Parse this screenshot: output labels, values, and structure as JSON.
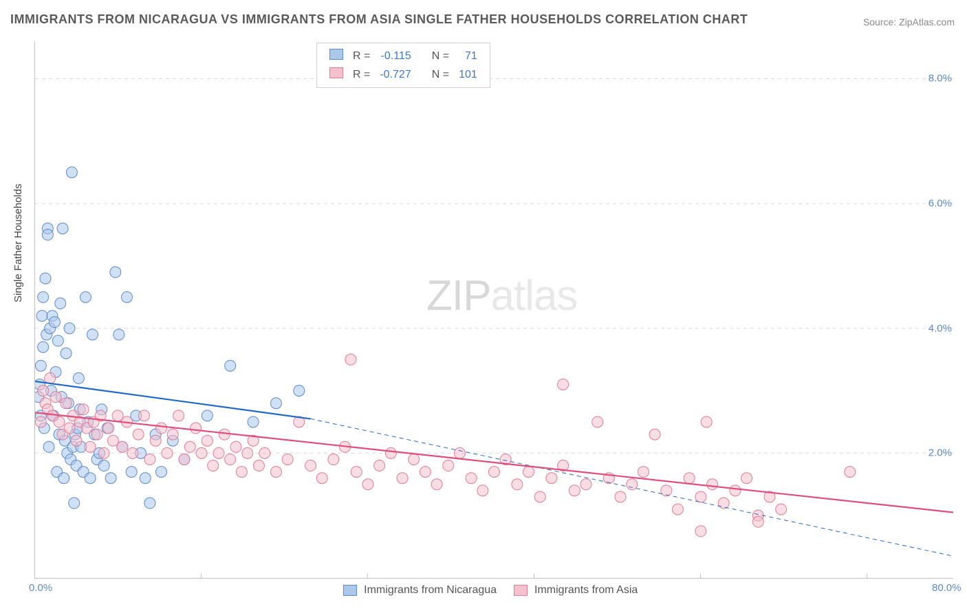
{
  "title": "IMMIGRANTS FROM NICARAGUA VS IMMIGRANTS FROM ASIA SINGLE FATHER HOUSEHOLDS CORRELATION CHART",
  "source": "Source: ZipAtlas.com",
  "watermark_a": "ZIP",
  "watermark_b": "atlas",
  "ylabel": "Single Father Households",
  "chart": {
    "type": "scatter",
    "x_min": 0.0,
    "x_max": 80.0,
    "y_min": 0.0,
    "y_max": 8.6,
    "x_ticks": [
      0.0,
      80.0
    ],
    "x_tick_minor": [
      14.5,
      29.0,
      43.5,
      58.0,
      72.5
    ],
    "y_ticks": [
      2.0,
      4.0,
      6.0,
      8.0
    ],
    "x_tick_labels": [
      "0.0%",
      "80.0%"
    ],
    "y_tick_labels": [
      "2.0%",
      "4.0%",
      "6.0%",
      "8.0%"
    ],
    "background_color": "#ffffff",
    "grid_color": "#d8d8d8",
    "axis_color": "#c0c0c0",
    "marker_radius": 8,
    "marker_opacity": 0.55,
    "line_width": 2.2
  },
  "series": [
    {
      "name": "Immigrants from Nicaragua",
      "color_fill": "#a9c8ec",
      "color_stroke": "#5b89c9",
      "line_color": "#1f68c7",
      "R": "-0.115",
      "N": "71",
      "trend": {
        "x1": 0.0,
        "y1": 3.15,
        "x2": 24.0,
        "y2": 2.55
      },
      "trend_ext": {
        "x1": 24.0,
        "y1": 2.55,
        "x2": 80.0,
        "y2": 0.35
      },
      "points": [
        [
          0.3,
          2.9
        ],
        [
          0.4,
          3.1
        ],
        [
          0.5,
          2.6
        ],
        [
          0.5,
          3.4
        ],
        [
          0.6,
          4.2
        ],
        [
          0.7,
          4.5
        ],
        [
          0.7,
          3.7
        ],
        [
          0.8,
          2.4
        ],
        [
          0.9,
          4.8
        ],
        [
          1.0,
          3.9
        ],
        [
          1.1,
          5.6
        ],
        [
          1.1,
          5.5
        ],
        [
          1.2,
          2.1
        ],
        [
          1.3,
          4.0
        ],
        [
          1.4,
          3.0
        ],
        [
          1.5,
          4.2
        ],
        [
          1.6,
          2.6
        ],
        [
          1.7,
          4.1
        ],
        [
          1.8,
          3.3
        ],
        [
          1.9,
          1.7
        ],
        [
          2.0,
          3.8
        ],
        [
          2.1,
          2.3
        ],
        [
          2.2,
          4.4
        ],
        [
          2.3,
          2.9
        ],
        [
          2.4,
          5.6
        ],
        [
          2.5,
          1.6
        ],
        [
          2.6,
          2.2
        ],
        [
          2.7,
          3.6
        ],
        [
          2.8,
          2.0
        ],
        [
          2.9,
          2.8
        ],
        [
          3.0,
          4.0
        ],
        [
          3.1,
          1.9
        ],
        [
          3.2,
          6.5
        ],
        [
          3.3,
          2.1
        ],
        [
          3.4,
          1.2
        ],
        [
          3.5,
          2.3
        ],
        [
          3.6,
          1.8
        ],
        [
          3.7,
          2.4
        ],
        [
          3.8,
          3.2
        ],
        [
          3.9,
          2.7
        ],
        [
          4.0,
          2.1
        ],
        [
          4.2,
          1.7
        ],
        [
          4.4,
          4.5
        ],
        [
          4.6,
          2.5
        ],
        [
          4.8,
          1.6
        ],
        [
          5.0,
          3.9
        ],
        [
          5.2,
          2.3
        ],
        [
          5.4,
          1.9
        ],
        [
          5.6,
          2.0
        ],
        [
          5.8,
          2.7
        ],
        [
          6.0,
          1.8
        ],
        [
          6.3,
          2.4
        ],
        [
          6.6,
          1.6
        ],
        [
          7.0,
          4.9
        ],
        [
          7.3,
          3.9
        ],
        [
          7.6,
          2.1
        ],
        [
          8.0,
          4.5
        ],
        [
          8.4,
          1.7
        ],
        [
          8.8,
          2.6
        ],
        [
          9.2,
          2.0
        ],
        [
          9.6,
          1.6
        ],
        [
          10.0,
          1.2
        ],
        [
          10.5,
          2.3
        ],
        [
          11.0,
          1.7
        ],
        [
          12.0,
          2.2
        ],
        [
          13.0,
          1.9
        ],
        [
          15.0,
          2.6
        ],
        [
          17.0,
          3.4
        ],
        [
          19.0,
          2.5
        ],
        [
          21.0,
          2.8
        ],
        [
          23.0,
          3.0
        ]
      ]
    },
    {
      "name": "Immigrants from Asia",
      "color_fill": "#f4c1cd",
      "color_stroke": "#e07a94",
      "line_color": "#e14d7b",
      "R": "-0.727",
      "N": "101",
      "trend": {
        "x1": 0.0,
        "y1": 2.65,
        "x2": 80.0,
        "y2": 1.05
      },
      "points": [
        [
          0.5,
          2.5
        ],
        [
          0.7,
          3.0
        ],
        [
          0.9,
          2.8
        ],
        [
          1.1,
          2.7
        ],
        [
          1.3,
          3.2
        ],
        [
          1.5,
          2.6
        ],
        [
          1.8,
          2.9
        ],
        [
          2.1,
          2.5
        ],
        [
          2.4,
          2.3
        ],
        [
          2.7,
          2.8
        ],
        [
          3.0,
          2.4
        ],
        [
          3.3,
          2.6
        ],
        [
          3.6,
          2.2
        ],
        [
          3.9,
          2.5
        ],
        [
          4.2,
          2.7
        ],
        [
          4.5,
          2.4
        ],
        [
          4.8,
          2.1
        ],
        [
          5.1,
          2.5
        ],
        [
          5.4,
          2.3
        ],
        [
          5.7,
          2.6
        ],
        [
          6.0,
          2.0
        ],
        [
          6.4,
          2.4
        ],
        [
          6.8,
          2.2
        ],
        [
          7.2,
          2.6
        ],
        [
          7.6,
          2.1
        ],
        [
          8.0,
          2.5
        ],
        [
          8.5,
          2.0
        ],
        [
          9.0,
          2.3
        ],
        [
          9.5,
          2.6
        ],
        [
          10.0,
          1.9
        ],
        [
          10.5,
          2.2
        ],
        [
          11.0,
          2.4
        ],
        [
          11.5,
          2.0
        ],
        [
          12.0,
          2.3
        ],
        [
          12.5,
          2.6
        ],
        [
          13.0,
          1.9
        ],
        [
          13.5,
          2.1
        ],
        [
          14.0,
          2.4
        ],
        [
          14.5,
          2.0
        ],
        [
          15.0,
          2.2
        ],
        [
          15.5,
          1.8
        ],
        [
          16.0,
          2.0
        ],
        [
          16.5,
          2.3
        ],
        [
          17.0,
          1.9
        ],
        [
          17.5,
          2.1
        ],
        [
          18.0,
          1.7
        ],
        [
          18.5,
          2.0
        ],
        [
          19.0,
          2.2
        ],
        [
          19.5,
          1.8
        ],
        [
          20.0,
          2.0
        ],
        [
          21.0,
          1.7
        ],
        [
          22.0,
          1.9
        ],
        [
          23.0,
          2.5
        ],
        [
          24.0,
          1.8
        ],
        [
          25.0,
          1.6
        ],
        [
          26.0,
          1.9
        ],
        [
          27.0,
          2.1
        ],
        [
          28.0,
          1.7
        ],
        [
          27.5,
          3.5
        ],
        [
          29.0,
          1.5
        ],
        [
          30.0,
          1.8
        ],
        [
          31.0,
          2.0
        ],
        [
          32.0,
          1.6
        ],
        [
          33.0,
          1.9
        ],
        [
          34.0,
          1.7
        ],
        [
          35.0,
          1.5
        ],
        [
          36.0,
          1.8
        ],
        [
          37.0,
          2.0
        ],
        [
          38.0,
          1.6
        ],
        [
          39.0,
          1.4
        ],
        [
          40.0,
          1.7
        ],
        [
          41.0,
          1.9
        ],
        [
          42.0,
          1.5
        ],
        [
          43.0,
          1.7
        ],
        [
          44.0,
          1.3
        ],
        [
          45.0,
          1.6
        ],
        [
          46.0,
          1.8
        ],
        [
          47.0,
          1.4
        ],
        [
          46.0,
          3.1
        ],
        [
          48.0,
          1.5
        ],
        [
          49.0,
          2.5
        ],
        [
          50.0,
          1.6
        ],
        [
          51.0,
          1.3
        ],
        [
          52.0,
          1.5
        ],
        [
          53.0,
          1.7
        ],
        [
          54.0,
          2.3
        ],
        [
          55.0,
          1.4
        ],
        [
          56.0,
          1.1
        ],
        [
          57.0,
          1.6
        ],
        [
          58.0,
          1.3
        ],
        [
          58.5,
          2.5
        ],
        [
          59.0,
          1.5
        ],
        [
          60.0,
          1.2
        ],
        [
          61.0,
          1.4
        ],
        [
          62.0,
          1.6
        ],
        [
          63.0,
          1.0
        ],
        [
          64.0,
          1.3
        ],
        [
          63.0,
          0.9
        ],
        [
          65.0,
          1.1
        ],
        [
          71.0,
          1.7
        ],
        [
          58.0,
          0.75
        ]
      ]
    }
  ],
  "legend_bottom": [
    {
      "label": "Immigrants from Nicaragua",
      "fill": "#a9c8ec",
      "stroke": "#5b89c9"
    },
    {
      "label": "Immigrants from Asia",
      "fill": "#f4c1cd",
      "stroke": "#e07a94"
    }
  ],
  "stats_labels": {
    "R": "R = ",
    "N": "N = "
  }
}
